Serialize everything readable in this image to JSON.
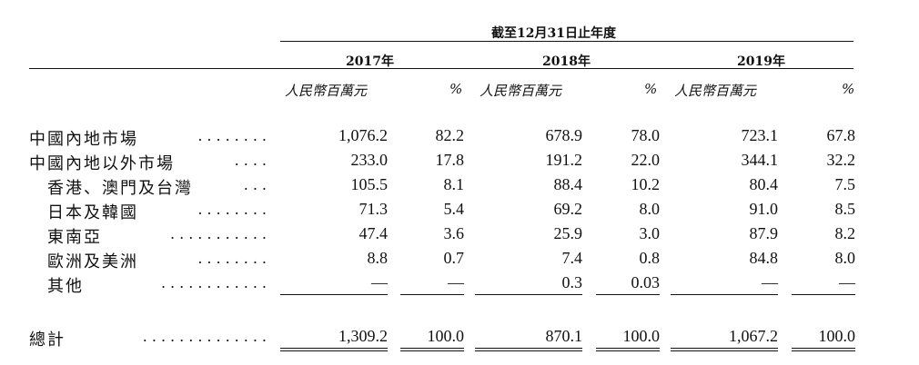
{
  "table": {
    "period_header": "截至12月31日止年度",
    "years": [
      "2017年",
      "2018年",
      "2019年"
    ],
    "unit_amount": "人民幣百萬元",
    "unit_pct": "%",
    "rows": [
      {
        "label": "中國內地市場",
        "leader": "........",
        "values": [
          "1,076.2",
          "82.2",
          "678.9",
          "78.0",
          "723.1",
          "67.8"
        ]
      },
      {
        "label": "中國內地以外市場",
        "leader": "....",
        "values": [
          "233.0",
          "17.8",
          "191.2",
          "22.0",
          "344.1",
          "32.2"
        ]
      },
      {
        "label": "香港、澳門及台灣",
        "leader": "...",
        "values": [
          "105.5",
          "8.1",
          "88.4",
          "10.2",
          "80.4",
          "7.5"
        ]
      },
      {
        "label": "日本及韓國",
        "leader": "........",
        "values": [
          "71.3",
          "5.4",
          "69.2",
          "8.0",
          "91.0",
          "8.5"
        ]
      },
      {
        "label": "東南亞",
        "leader": "...........",
        "values": [
          "47.4",
          "3.6",
          "25.9",
          "3.0",
          "87.9",
          "8.2"
        ]
      },
      {
        "label": "歐洲及美洲",
        "leader": "........",
        "values": [
          "8.8",
          "0.7",
          "7.4",
          "0.8",
          "84.8",
          "8.0"
        ]
      },
      {
        "label": "其他",
        "leader": "............",
        "values": [
          "—",
          "—",
          "0.3",
          "0.03",
          "—",
          "—"
        ]
      }
    ],
    "total": {
      "label": "總計",
      "leader": "..............",
      "values": [
        "1,309.2",
        "100.0",
        "870.1",
        "100.0",
        "1,067.2",
        "100.0"
      ]
    }
  }
}
